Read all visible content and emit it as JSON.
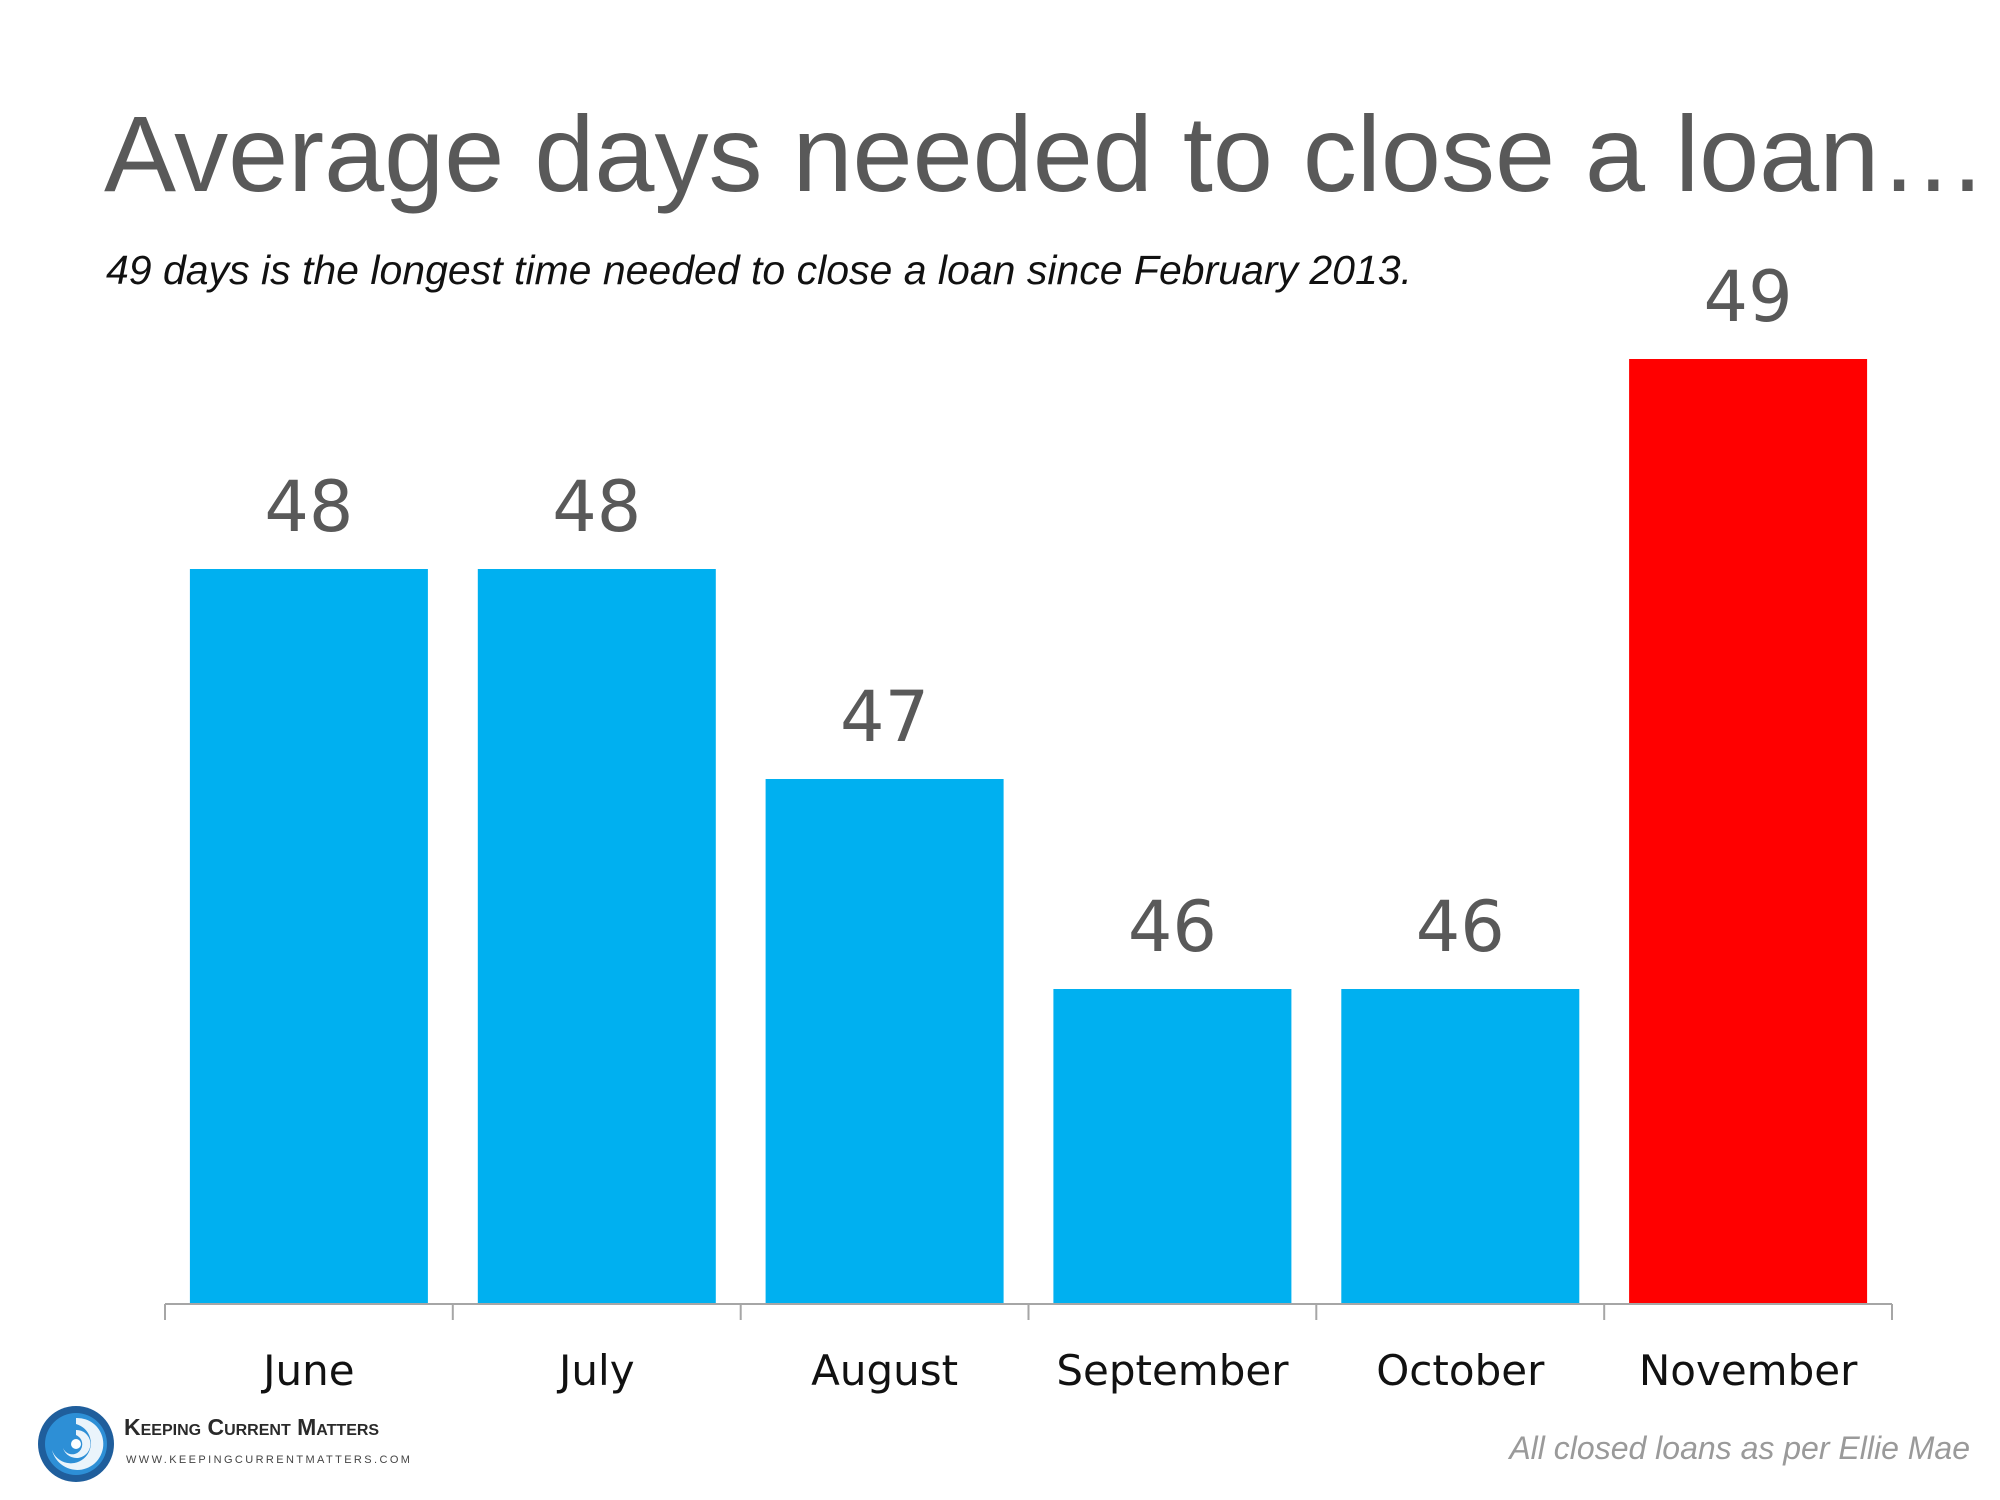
{
  "title": "Average days needed to close a loan…",
  "subtitle": "49 days is the longest time needed to close a loan since February 2013.",
  "footnote": "All closed loans as per Ellie Mae",
  "logo": {
    "name": "Keeping Current Matters",
    "url": "WWW.KEEPINGCURRENTMATTERS.COM",
    "icon": "swirl-logo-icon"
  },
  "colors": {
    "bar": "#00B0F0",
    "highlight": "#FF0000",
    "value_label": "#595959",
    "axis": "#a6a6a6"
  },
  "chart_data": {
    "type": "bar",
    "title": "Average days needed to close a loan…",
    "subtitle": "49 days is the longest time needed to close a loan since February 2013.",
    "xlabel": "",
    "ylabel": "",
    "categories": [
      "June",
      "July",
      "August",
      "September",
      "October",
      "November"
    ],
    "values": [
      48,
      48,
      47,
      46,
      46,
      49
    ],
    "data_labels": [
      "48",
      "48",
      "47",
      "46",
      "46",
      "49"
    ],
    "highlight_index": 5,
    "ylim": [
      44.5,
      49
    ],
    "grid": false,
    "legend": "none"
  }
}
